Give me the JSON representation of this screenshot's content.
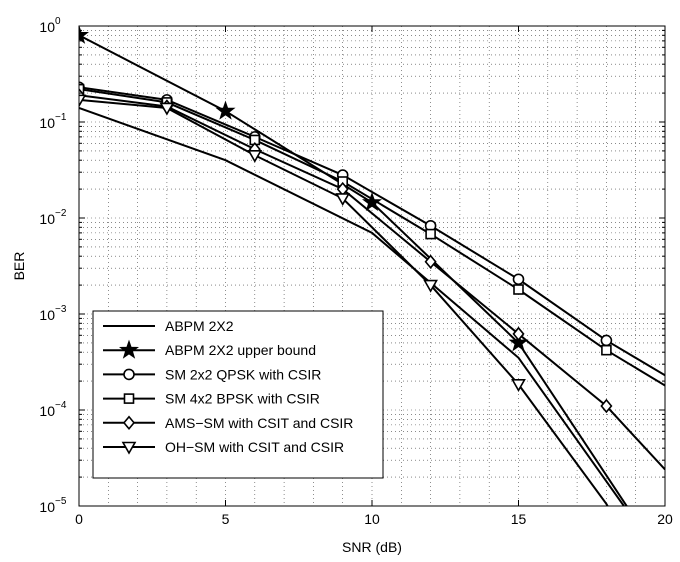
{
  "chart_data": {
    "type": "line",
    "xlabel": "SNR (dB)",
    "ylabel": "BER",
    "xlim": [
      0,
      20
    ],
    "ylim": [
      1e-05,
      1
    ],
    "yscale": "log",
    "grid": true,
    "legend_position": "bottom-left",
    "x_ticks": [
      "0",
      "5",
      "10",
      "15",
      "20"
    ],
    "y_ticks": [
      {
        "base": "10",
        "exp": "0",
        "value": 1
      },
      {
        "base": "10",
        "exp": "−1",
        "value": 0.1
      },
      {
        "base": "10",
        "exp": "−2",
        "value": 0.01
      },
      {
        "base": "10",
        "exp": "−3",
        "value": 0.001
      },
      {
        "base": "10",
        "exp": "−4",
        "value": 0.0001
      },
      {
        "base": "10",
        "exp": "−5",
        "value": 1e-05
      }
    ],
    "series": [
      {
        "name": "ABPM 2X2",
        "marker": "none",
        "x": [
          0,
          5,
          10,
          15,
          20
        ],
        "y": [
          0.14,
          0.04,
          0.007,
          0.00035,
          2.5e-06
        ]
      },
      {
        "name": "ABPM 2X2 upper bound",
        "marker": "star",
        "x": [
          0,
          5,
          10,
          15,
          20
        ],
        "y": [
          0.8,
          0.13,
          0.0145,
          0.0005,
          2.5e-06
        ]
      },
      {
        "name": "SM 2x2 QPSK with CSIR",
        "marker": "circle",
        "x": [
          0,
          3,
          6,
          9,
          12,
          15,
          18,
          20
        ],
        "y": [
          0.23,
          0.17,
          0.07,
          0.028,
          0.0083,
          0.0023,
          0.00053,
          0.00023
        ]
      },
      {
        "name": "SM 4x2 BPSK with CSIR",
        "marker": "square",
        "x": [
          0,
          3,
          6,
          9,
          12,
          15,
          18,
          20
        ],
        "y": [
          0.22,
          0.16,
          0.065,
          0.024,
          0.0068,
          0.0018,
          0.00042,
          0.00018
        ]
      },
      {
        "name": "AMS−SM with CSIT and CSIR",
        "marker": "diamond",
        "x": [
          0,
          3,
          6,
          9,
          12,
          15,
          18,
          20
        ],
        "y": [
          0.19,
          0.145,
          0.052,
          0.02,
          0.0035,
          0.00062,
          0.00011,
          2.4e-05
        ]
      },
      {
        "name": "OH−SM with CSIT and CSIR",
        "marker": "triangle-down",
        "x": [
          0,
          3,
          6,
          9,
          12,
          15,
          18,
          18.6
        ],
        "y": [
          0.17,
          0.14,
          0.045,
          0.016,
          0.002,
          0.000185,
          1.05e-05,
          5e-06
        ]
      }
    ]
  }
}
